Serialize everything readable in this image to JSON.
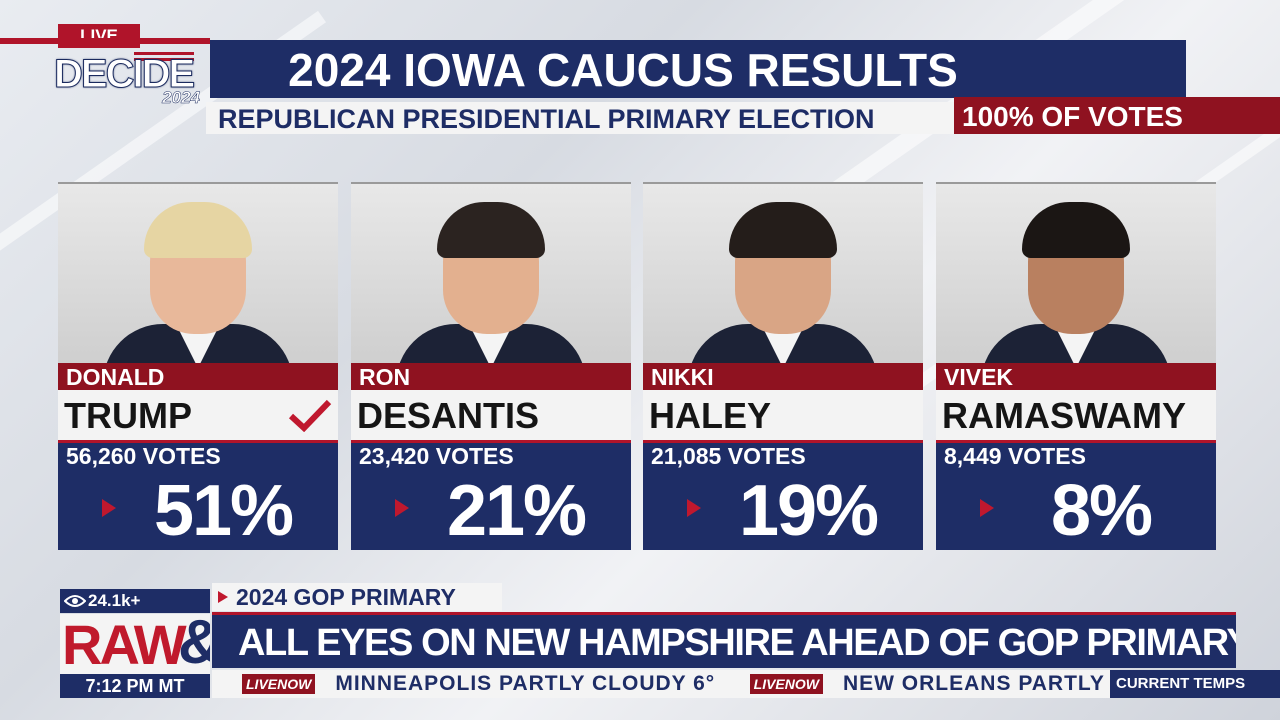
{
  "logo": {
    "live": "LIVE",
    "word": "DECIDE",
    "year": "2024"
  },
  "header": {
    "title": "2024 IOWA CAUCUS RESULTS",
    "subtitle": "REPUBLICAN PRESIDENTIAL PRIMARY ELECTION",
    "votes_reported": "100% OF VOTES"
  },
  "candidates": [
    {
      "first": "DONALD",
      "last": "TRUMP",
      "votes": "56,260 VOTES",
      "percent": "51%",
      "winner": true,
      "hair": "#e6d5a3",
      "skin": "#e8b89a"
    },
    {
      "first": "RON",
      "last": "DESANTIS",
      "votes": "23,420 VOTES",
      "percent": "21%",
      "winner": false,
      "hair": "#2b2320",
      "skin": "#e3b08f"
    },
    {
      "first": "NIKKI",
      "last": "HALEY",
      "votes": "21,085 VOTES",
      "percent": "19%",
      "winner": false,
      "hair": "#241d1a",
      "skin": "#d9a585"
    },
    {
      "first": "VIVEK",
      "last": "RAMASWAMY",
      "votes": "8,449 VOTES",
      "percent": "8%",
      "winner": false,
      "hair": "#1b1614",
      "skin": "#b98060"
    }
  ],
  "lower_third": {
    "views": "24.1k+",
    "show_logo": "RAW",
    "show_logo_amp": "&",
    "time": "7:12 PM MT",
    "topic": "2024 GOP PRIMARY",
    "headline": "ALL EYES ON NEW HAMPSHIRE AHEAD OF GOP PRIMARY NEXT WEEK",
    "ticker": [
      {
        "brand": "LIVENOW",
        "text": "MINNEAPOLIS   PARTLY CLOUDY 6°"
      },
      {
        "brand": "LIVENOW",
        "text": "NEW ORLEANS   PARTLY C"
      }
    ],
    "ticker_label": "CURRENT TEMPS"
  },
  "colors": {
    "navy": "#1e2d66",
    "red": "#b0142a",
    "dark_red": "#8f1220"
  }
}
